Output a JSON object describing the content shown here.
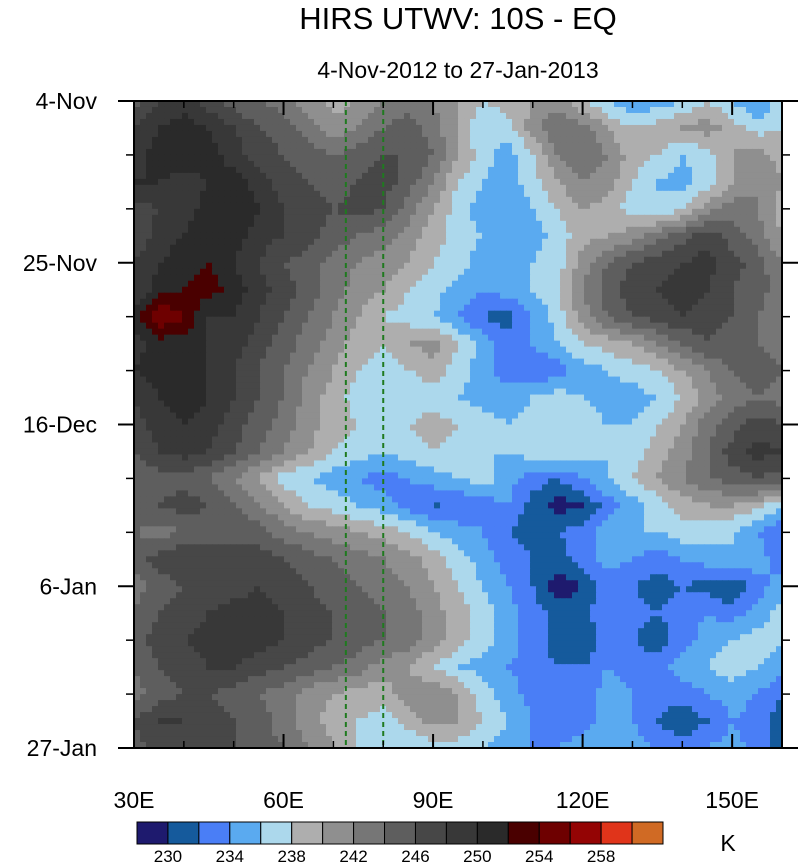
{
  "chart_data": {
    "type": "heatmap",
    "title": "HIRS UTWV: 10S - EQ",
    "subtitle": "4-Nov-2012 to 27-Jan-2013",
    "xlabel": "",
    "ylabel": "",
    "xlim": [
      30,
      160
    ],
    "ylim_days": [
      0,
      84
    ],
    "x_ticks": [
      {
        "value": 30,
        "label": "30E"
      },
      {
        "value": 60,
        "label": "60E"
      },
      {
        "value": 90,
        "label": "90E"
      },
      {
        "value": 120,
        "label": "120E"
      },
      {
        "value": 150,
        "label": "150E"
      }
    ],
    "x_minor_step": 10,
    "y_ticks": [
      {
        "day": 0,
        "label": "4-Nov"
      },
      {
        "day": 21,
        "label": "25-Nov"
      },
      {
        "day": 42,
        "label": "16-Dec"
      },
      {
        "day": 63,
        "label": "6-Jan"
      },
      {
        "day": 84,
        "label": "27-Jan"
      }
    ],
    "y_minor_step_days": 7,
    "reference_lines": [
      {
        "x": 72.5,
        "color": "#1f7a1f",
        "style": "dashed"
      },
      {
        "x": 80,
        "color": "#1f7a1f",
        "style": "dashed"
      }
    ],
    "colorbar": {
      "unit": "K",
      "levels": [
        228,
        230,
        232,
        234,
        236,
        238,
        240,
        242,
        244,
        246,
        248,
        250,
        252,
        254,
        256,
        258,
        260
      ],
      "labeled_levels": [
        230,
        234,
        238,
        242,
        246,
        250,
        254,
        258
      ],
      "colors": [
        "#1e1a6e",
        "#155a9c",
        "#4a7ef6",
        "#5aaaf0",
        "#acd8ec",
        "#aeaeae",
        "#8f8f8f",
        "#767676",
        "#5e5e5e",
        "#474747",
        "#383838",
        "#2a2a2a",
        "#4a0000",
        "#6e0000",
        "#940404",
        "#e0341a",
        "#d06a24"
      ]
    },
    "x": [
      30,
      35,
      40,
      45,
      50,
      55,
      60,
      65,
      70,
      75,
      80,
      85,
      90,
      95,
      100,
      105,
      110,
      115,
      120,
      125,
      130,
      135,
      140,
      145,
      150,
      155,
      160
    ],
    "y_days": [
      0,
      3.5,
      7,
      10.5,
      14,
      17.5,
      21,
      24.5,
      28,
      31.5,
      35,
      38.5,
      42,
      45.5,
      49,
      52.5,
      56,
      59.5,
      63,
      66.5,
      70,
      73.5,
      77,
      80.5,
      84
    ],
    "z": [
      [
        245,
        248,
        249,
        247,
        245,
        244,
        243,
        241,
        239,
        240,
        242,
        243,
        242,
        240,
        238,
        239,
        240,
        241,
        238,
        236,
        234,
        235,
        236,
        238,
        236,
        234,
        237
      ],
      [
        248,
        250,
        251,
        250,
        248,
        246,
        245,
        243,
        241,
        242,
        244,
        245,
        243,
        240,
        236,
        237,
        241,
        244,
        243,
        240,
        238,
        239,
        240,
        241,
        239,
        237,
        238
      ],
      [
        249,
        251,
        252,
        251,
        249,
        247,
        246,
        245,
        244,
        245,
        246,
        246,
        244,
        240,
        237,
        235,
        238,
        242,
        244,
        242,
        239,
        238,
        236,
        237,
        240,
        241,
        239
      ],
      [
        250,
        250,
        249,
        250,
        251,
        249,
        247,
        246,
        245,
        246,
        247,
        245,
        242,
        238,
        236,
        235,
        237,
        240,
        242,
        241,
        238,
        236,
        235,
        237,
        240,
        242,
        240
      ],
      [
        247,
        248,
        249,
        251,
        252,
        250,
        248,
        247,
        246,
        247,
        246,
        243,
        240,
        237,
        235,
        234,
        236,
        238,
        240,
        239,
        237,
        236,
        238,
        241,
        243,
        242,
        239
      ],
      [
        246,
        249,
        250,
        252,
        251,
        249,
        248,
        247,
        245,
        244,
        243,
        241,
        239,
        237,
        236,
        235,
        235,
        237,
        239,
        240,
        241,
        243,
        245,
        247,
        245,
        243,
        240
      ],
      [
        248,
        250,
        251,
        252,
        250,
        248,
        246,
        245,
        243,
        242,
        241,
        240,
        238,
        237,
        235,
        235,
        236,
        237,
        241,
        244,
        246,
        247,
        248,
        249,
        247,
        245,
        242
      ],
      [
        248,
        251,
        252,
        253,
        251,
        249,
        247,
        245,
        243,
        241,
        240,
        238,
        237,
        235,
        234,
        235,
        236,
        238,
        242,
        245,
        247,
        248,
        249,
        248,
        246,
        245,
        243
      ],
      [
        251,
        256,
        254,
        250,
        250,
        248,
        246,
        244,
        242,
        240,
        238,
        237,
        236,
        234,
        232,
        231,
        234,
        237,
        241,
        244,
        246,
        247,
        248,
        247,
        246,
        244,
        242
      ],
      [
        249,
        251,
        251,
        250,
        249,
        247,
        245,
        243,
        241,
        239,
        238,
        240,
        241,
        238,
        235,
        233,
        234,
        236,
        238,
        239,
        240,
        242,
        244,
        246,
        245,
        244,
        243
      ],
      [
        250,
        251,
        251,
        250,
        248,
        246,
        244,
        242,
        240,
        238,
        237,
        238,
        239,
        237,
        235,
        233,
        232,
        233,
        235,
        236,
        237,
        238,
        240,
        242,
        244,
        245,
        244
      ],
      [
        248,
        250,
        251,
        250,
        248,
        246,
        244,
        241,
        239,
        237,
        236,
        236,
        237,
        236,
        235,
        235,
        236,
        237,
        236,
        235,
        235,
        236,
        238,
        241,
        243,
        244,
        243
      ],
      [
        247,
        249,
        250,
        249,
        247,
        245,
        243,
        241,
        239,
        238,
        237,
        238,
        239,
        238,
        237,
        236,
        237,
        238,
        237,
        236,
        236,
        238,
        240,
        243,
        245,
        247,
        246
      ],
      [
        246,
        248,
        249,
        248,
        246,
        244,
        242,
        240,
        238,
        237,
        236,
        237,
        238,
        237,
        236,
        236,
        237,
        238,
        237,
        236,
        237,
        239,
        241,
        244,
        247,
        249,
        248
      ],
      [
        244,
        245,
        245,
        244,
        242,
        240,
        237,
        236,
        235,
        234,
        233,
        234,
        235,
        236,
        237,
        235,
        233,
        232,
        234,
        236,
        238,
        240,
        242,
        244,
        245,
        246,
        245
      ],
      [
        245,
        246,
        247,
        246,
        244,
        242,
        240,
        238,
        237,
        236,
        235,
        233,
        232,
        232,
        233,
        234,
        231,
        229,
        230,
        233,
        235,
        237,
        239,
        240,
        240,
        239,
        236
      ],
      [
        244,
        243,
        244,
        245,
        246,
        245,
        243,
        242,
        241,
        240,
        239,
        238,
        236,
        235,
        234,
        232,
        231,
        232,
        233,
        235,
        236,
        236,
        237,
        237,
        236,
        234,
        232
      ],
      [
        245,
        247,
        248,
        247,
        246,
        247,
        246,
        245,
        244,
        243,
        242,
        241,
        239,
        237,
        235,
        233,
        232,
        231,
        233,
        235,
        234,
        233,
        234,
        235,
        236,
        235,
        233
      ],
      [
        243,
        245,
        246,
        246,
        247,
        248,
        247,
        246,
        245,
        244,
        243,
        242,
        240,
        238,
        236,
        234,
        232,
        229,
        230,
        233,
        232,
        231,
        232,
        231,
        230,
        233,
        235
      ],
      [
        244,
        246,
        247,
        248,
        249,
        249,
        248,
        247,
        246,
        245,
        244,
        243,
        241,
        239,
        237,
        235,
        233,
        231,
        231,
        234,
        233,
        232,
        233,
        234,
        233,
        235,
        237
      ],
      [
        245,
        247,
        248,
        249,
        250,
        249,
        248,
        247,
        246,
        245,
        244,
        243,
        241,
        239,
        237,
        235,
        233,
        231,
        230,
        233,
        232,
        231,
        233,
        235,
        236,
        237,
        236
      ],
      [
        244,
        246,
        247,
        248,
        248,
        247,
        246,
        245,
        244,
        243,
        241,
        240,
        238,
        236,
        235,
        234,
        233,
        232,
        232,
        234,
        233,
        233,
        235,
        236,
        237,
        236,
        235
      ],
      [
        243,
        245,
        246,
        246,
        245,
        244,
        243,
        241,
        240,
        239,
        239,
        241,
        242,
        240,
        237,
        235,
        233,
        232,
        233,
        235,
        234,
        233,
        233,
        234,
        235,
        234,
        232
      ],
      [
        246,
        248,
        248,
        247,
        246,
        245,
        243,
        241,
        239,
        238,
        237,
        239,
        241,
        240,
        238,
        236,
        234,
        233,
        233,
        235,
        234,
        232,
        230,
        232,
        234,
        233,
        231
      ],
      [
        245,
        247,
        248,
        247,
        246,
        245,
        244,
        242,
        240,
        238,
        237,
        236,
        237,
        237,
        236,
        235,
        234,
        234,
        235,
        236,
        235,
        234,
        233,
        234,
        235,
        233,
        231
      ]
    ]
  }
}
